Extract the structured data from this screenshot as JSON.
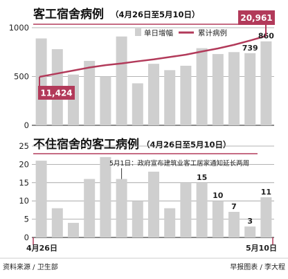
{
  "chart_data": [
    {
      "type": "bar",
      "title": "客工宿舍病例",
      "subtitle": "（4月26日至5月10日）",
      "ylim": [
        0,
        1000
      ],
      "yticks": [
        0,
        500,
        1000
      ],
      "values": [
        890,
        780,
        520,
        660,
        500,
        910,
        430,
        630,
        565,
        610,
        790,
        730,
        750,
        739,
        860
      ],
      "value_labels": {
        "13": "739",
        "14": "860"
      },
      "bar_legend": "单日增幅",
      "line_legend": "累计病例",
      "line_values": [
        11424,
        12200,
        12900,
        13600,
        14150,
        14550,
        15050,
        15500,
        16050,
        16600,
        17350,
        18050,
        18900,
        19900,
        20961
      ],
      "line_start_label": "11,424",
      "line_end_label": "20,961",
      "grid": true,
      "legend_position": "top-left",
      "colors": {
        "bar": "#cfcfcf",
        "line": "#b23a5a",
        "callout": "#b23a5a"
      }
    },
    {
      "type": "bar",
      "title": "不住宿舍的客工病例",
      "subtitle": "（4月26日至5月10日）",
      "ylim": [
        0,
        25
      ],
      "yticks": [
        0,
        5,
        10,
        15,
        20,
        25
      ],
      "values": [
        21,
        8,
        4,
        16,
        22,
        16,
        10,
        18,
        8,
        15,
        15,
        10,
        7,
        3,
        11
      ],
      "value_labels": {
        "10": "15",
        "11": "10",
        "12": "7",
        "13": "3",
        "14": "11"
      },
      "annotation_index": 5,
      "annotation_text": "5月1日：政府宣布建筑业客工居家通知延长两周",
      "x_start_label": "4月26日",
      "x_end_label": "5月10日",
      "grid": true,
      "colors": {
        "bar": "#cfcfcf",
        "callout": "#b23a5a"
      }
    }
  ],
  "footer": {
    "source": "资料来源 / 卫生部",
    "credit": "早报图表 / 李大程"
  }
}
